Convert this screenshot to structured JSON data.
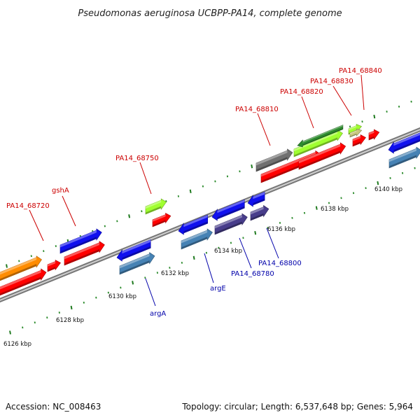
{
  "title": "Pseudomonas aeruginosa UCBPP-PA14, complete genome",
  "footer": {
    "accession": "Accession: NC_008463",
    "topology": "Topology: circular; Length: 6,537,648 bp; Genes: 5,964"
  },
  "colors": {
    "backbone": "#8c8c8c",
    "tick_major": "#1f7a1f",
    "label_forward": "#cc0000",
    "label_reverse": "#0000aa",
    "cds_red": "#ff0000",
    "cds_blue": "#1010ee",
    "cds_steel": "#4682b4",
    "cds_purple": "#483d8b",
    "cds_orange": "#ff8c00",
    "cds_lime": "#a0ff30",
    "cds_green": "#2e8b2e",
    "cds_gray": "#707070",
    "cds_khaki": "#c8c880"
  },
  "ticks": [
    "6126 kbp",
    "6128 kbp",
    "6130 kbp",
    "6132 kbp",
    "6134 kbp",
    "6136 kbp",
    "6138 kbp",
    "6140 kbp"
  ],
  "forward_labels": [
    "PA14_68720",
    "gshA",
    "PA14_68750",
    "PA14_68810",
    "PA14_68820",
    "PA14_68830",
    "PA14_68840"
  ],
  "reverse_labels": [
    "argA",
    "argE",
    "PA14_68780",
    "PA14_68800"
  ]
}
